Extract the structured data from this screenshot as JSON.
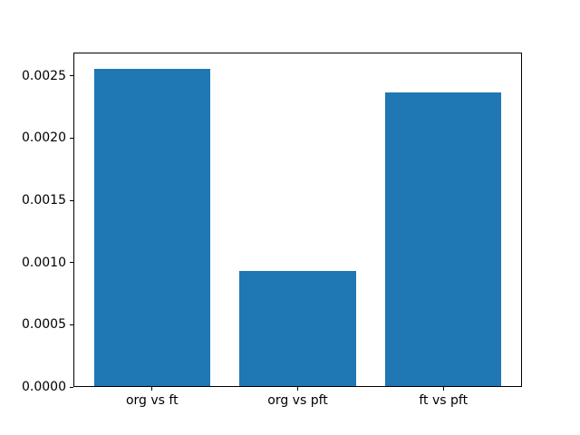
{
  "chart_data": {
    "type": "bar",
    "title": "",
    "xlabel": "",
    "ylabel": "",
    "categories": [
      "org vs ft",
      "org vs pft",
      "ft vs pft"
    ],
    "values": [
      0.00256,
      0.00093,
      0.00237
    ],
    "ylim": [
      0,
      0.002688
    ],
    "yticks": [
      0.0,
      0.0005,
      0.001,
      0.0015,
      0.002,
      0.0025
    ],
    "ytick_labels": [
      "0.0000",
      "0.0005",
      "0.0010",
      "0.0015",
      "0.0020",
      "0.0025"
    ],
    "grid": false,
    "legend": "none",
    "bar_color": "#1f77b4"
  },
  "colors": {
    "bar": "#1f77b4",
    "background": "#ffffff",
    "axis": "#000000",
    "text": "#000000"
  }
}
